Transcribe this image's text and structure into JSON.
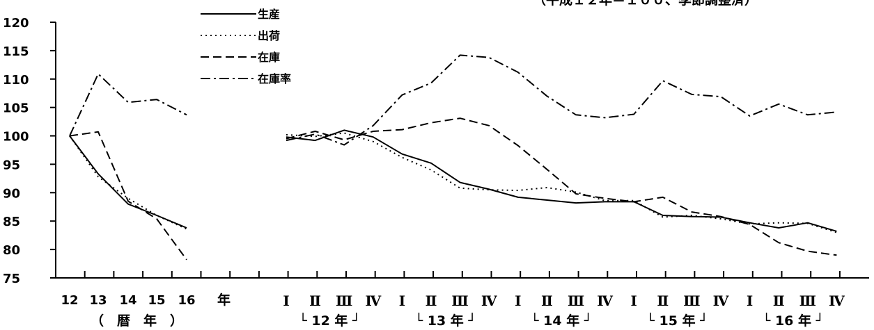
{
  "chart_data": {
    "type": "line",
    "subtitle": "（平成１２年＝１００、季節調整済）",
    "y_ticks": [
      "120",
      "115",
      "110",
      "105",
      "100",
      "95",
      "90",
      "85",
      "80",
      "75"
    ],
    "ylim": [
      75,
      120
    ],
    "annual": {
      "categories": [
        "12",
        "13",
        "14",
        "15",
        "16"
      ],
      "unit_label": "年",
      "group_label": "（　暦　年　）"
    },
    "quarterly": {
      "categories": [
        "Ⅰ",
        "Ⅱ",
        "Ⅲ",
        "Ⅳ",
        "Ⅰ",
        "Ⅱ",
        "Ⅲ",
        "Ⅳ",
        "Ⅰ",
        "Ⅱ",
        "Ⅲ",
        "Ⅳ",
        "Ⅰ",
        "Ⅱ",
        "Ⅲ",
        "Ⅳ",
        "Ⅰ",
        "Ⅱ",
        "Ⅲ",
        "Ⅳ"
      ],
      "year_groups": [
        {
          "label": "└ 12 年 ┘"
        },
        {
          "label": "└ 13 年 ┘"
        },
        {
          "label": "└ 14 年 ┘"
        },
        {
          "label": "└ 15 年 ┘"
        },
        {
          "label": "└ 16 年 ┘"
        }
      ]
    },
    "series": [
      {
        "name": "生産",
        "dash": "solid",
        "annual": [
          100,
          93.3,
          88.0,
          86.0,
          83.8
        ],
        "quarterly": [
          99.8,
          99.2,
          101.0,
          99.8,
          96.8,
          95.2,
          91.8,
          90.6,
          89.2,
          88.7,
          88.2,
          88.4,
          88.4,
          86.0,
          85.8,
          85.7,
          84.7,
          83.8,
          84.7,
          83.2
        ]
      },
      {
        "name": "出荷",
        "dash": "dotted",
        "annual": [
          100,
          92.8,
          89.0,
          86.0,
          83.6
        ],
        "quarterly": [
          100.2,
          99.9,
          100.5,
          99.0,
          96.2,
          94.0,
          90.8,
          90.5,
          90.4,
          90.9,
          90.1,
          88.6,
          88.6,
          85.7,
          86.0,
          85.4,
          84.5,
          84.7,
          84.6,
          83.0
        ]
      },
      {
        "name": "在庫",
        "dash": "dashed",
        "annual": [
          100,
          100.7,
          88.5,
          85.4,
          78.2
        ],
        "quarterly": [
          99.5,
          100.8,
          99.3,
          100.8,
          101.1,
          102.3,
          103.1,
          101.8,
          98.3,
          94.1,
          89.8,
          89.0,
          88.4,
          89.2,
          86.6,
          85.8,
          84.4,
          81.2,
          79.7,
          79.0
        ]
      },
      {
        "name": "在庫率",
        "dash": "dash-dot",
        "annual": [
          100,
          110.9,
          105.9,
          106.4,
          103.7
        ],
        "quarterly": [
          99.2,
          100.3,
          98.4,
          101.8,
          107.2,
          109.3,
          114.2,
          113.8,
          111.2,
          107.0,
          103.7,
          103.2,
          103.8,
          109.7,
          107.3,
          106.9,
          103.5,
          105.6,
          103.7,
          104.2
        ]
      }
    ]
  }
}
